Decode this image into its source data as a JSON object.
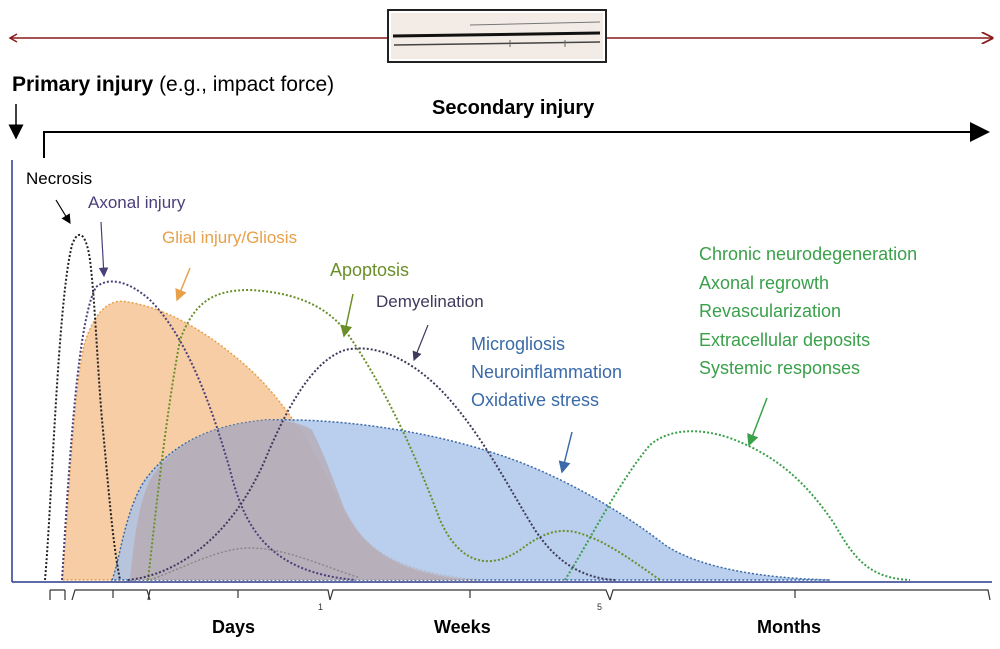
{
  "labels": {
    "primary_bold": "Primary injury",
    "primary_rest": " (e.g., impact force)",
    "secondary": "Secondary injury",
    "necrosis": "Necrosis",
    "axonal": "Axonal injury",
    "glial": "Glial injury/Gliosis",
    "apoptosis": "Apoptosis",
    "demyelination": "Demyelination",
    "blue_items": [
      "Microgliosis",
      "Neuroinflammation",
      "Oxidative stress"
    ],
    "green_items": [
      "Chronic neurodegeneration",
      "Axonal regrowth",
      "Revascularization",
      "Extracellular deposits",
      "Systemic responses"
    ]
  },
  "axis": {
    "days": "Days",
    "weeks": "Weeks",
    "months": "Months",
    "tick_1": "1",
    "tick_5": "5"
  },
  "colors": {
    "necrosis": "#222222",
    "axonal": "#4b3f7a",
    "glial": "#e8a04a",
    "glial_fill": "#f5c89a",
    "apoptosis": "#6a8f2a",
    "demyelination": "#3f3a5c",
    "blue": "#3a6aa8",
    "blue_fill": "#a9c2e8",
    "green": "#3aa04a",
    "timeline": "#8b1a1a"
  }
}
